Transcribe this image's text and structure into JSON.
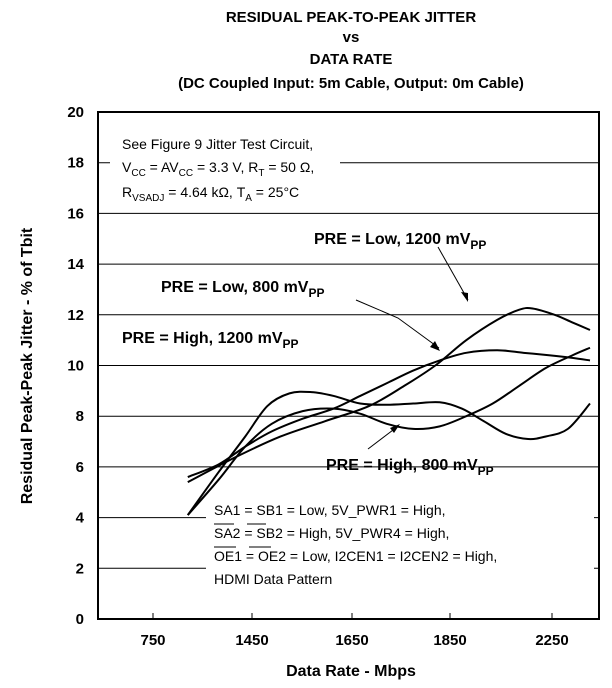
{
  "chart_data": {
    "type": "line",
    "title_lines": [
      "RESIDUAL PEAK-TO-PEAK JITTER",
      "vs",
      "DATA RATE",
      "(DC Coupled Input: 5m Cable, Output: 0m Cable)"
    ],
    "xlabel": "Data Rate - Mbps",
    "ylabel": "Residual Peak-Peak Jitter - % of Tbit",
    "x_ticks": [
      "750",
      "1450",
      "1650",
      "1850",
      "2250"
    ],
    "y_ticks": [
      "0",
      "2",
      "4",
      "6",
      "8",
      "10",
      "12",
      "14",
      "16",
      "18",
      "20"
    ],
    "ylim": [
      0,
      20
    ],
    "x_range_relative": [
      0,
      1
    ],
    "grid": "horizontal-partial",
    "series": [
      {
        "name": "PRE = Low, 1200 mVPP",
        "points": [
          [
            0.09,
            5.4
          ],
          [
            0.2,
            6.4
          ],
          [
            0.3,
            7.2
          ],
          [
            0.4,
            7.8
          ],
          [
            0.5,
            8.4
          ],
          [
            0.58,
            9.2
          ],
          [
            0.65,
            10.0
          ],
          [
            0.72,
            11.0
          ],
          [
            0.79,
            11.8
          ],
          [
            0.84,
            12.2
          ],
          [
            0.87,
            12.25
          ],
          [
            0.92,
            12.0
          ],
          [
            0.96,
            11.7
          ],
          [
            1.0,
            11.4
          ]
        ]
      },
      {
        "name": "PRE = Low, 800 mVPP",
        "points": [
          [
            0.09,
            4.1
          ],
          [
            0.16,
            5.5
          ],
          [
            0.22,
            6.8
          ],
          [
            0.28,
            7.7
          ],
          [
            0.35,
            8.2
          ],
          [
            0.42,
            8.3
          ],
          [
            0.48,
            8.1
          ],
          [
            0.54,
            7.7
          ],
          [
            0.6,
            7.5
          ],
          [
            0.66,
            7.6
          ],
          [
            0.72,
            8.0
          ],
          [
            0.78,
            8.5
          ],
          [
            0.84,
            9.2
          ],
          [
            0.9,
            9.9
          ],
          [
            0.96,
            10.4
          ],
          [
            1.0,
            10.7
          ]
        ]
      },
      {
        "name": "PRE = High, 1200 mVPP",
        "points": [
          [
            0.09,
            5.6
          ],
          [
            0.16,
            6.1
          ],
          [
            0.22,
            6.8
          ],
          [
            0.28,
            7.4
          ],
          [
            0.35,
            7.9
          ],
          [
            0.42,
            8.3
          ],
          [
            0.48,
            8.8
          ],
          [
            0.54,
            9.3
          ],
          [
            0.6,
            9.8
          ],
          [
            0.66,
            10.2
          ],
          [
            0.72,
            10.5
          ],
          [
            0.79,
            10.6
          ],
          [
            0.85,
            10.5
          ],
          [
            0.91,
            10.4
          ],
          [
            0.96,
            10.3
          ],
          [
            1.0,
            10.2
          ]
        ]
      },
      {
        "name": "PRE = High, 800 mVPP",
        "points": [
          [
            0.09,
            4.1
          ],
          [
            0.16,
            5.8
          ],
          [
            0.22,
            7.2
          ],
          [
            0.27,
            8.4
          ],
          [
            0.32,
            8.9
          ],
          [
            0.37,
            8.95
          ],
          [
            0.42,
            8.8
          ],
          [
            0.48,
            8.5
          ],
          [
            0.54,
            8.45
          ],
          [
            0.6,
            8.5
          ],
          [
            0.66,
            8.55
          ],
          [
            0.71,
            8.3
          ],
          [
            0.76,
            7.8
          ],
          [
            0.81,
            7.3
          ],
          [
            0.86,
            7.1
          ],
          [
            0.9,
            7.2
          ],
          [
            0.95,
            7.5
          ],
          [
            1.0,
            8.5
          ]
        ]
      }
    ],
    "annotations": {
      "conditions_line1": "See Figure 9 Jitter Test Circuit,",
      "conditions_line2": "VCC = AVCC = 3.3 V, RT = 50 Ω,",
      "conditions_line3": "RVSADJ = 4.64 kΩ, TA = 25°C",
      "settings_line1": "SA1 = SB1 = Low, 5V_PWR1 = High,",
      "settings_line2": "SA2 = SB2 = High, 5V_PWR4 = High,",
      "settings_line3": "OE1 = OE2 = Low, I2CEN1 = I2CEN2 = High,",
      "settings_line4": "HDMI Data Pattern"
    }
  }
}
